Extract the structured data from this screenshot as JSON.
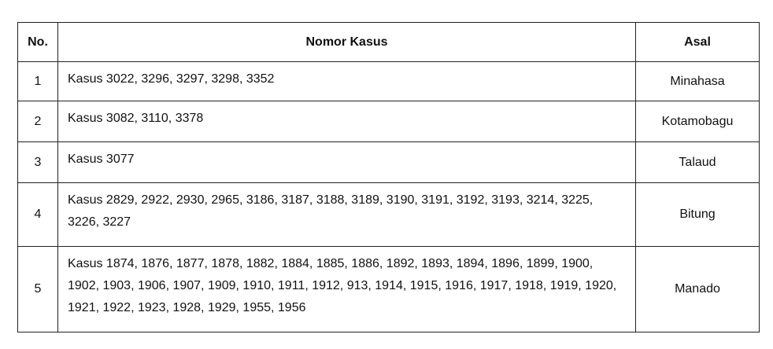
{
  "table": {
    "headers": [
      "No.",
      "Nomor Kasus",
      "Asal"
    ],
    "rows": [
      [
        "1",
        "Kasus 3022, 3296, 3297, 3298, 3352",
        "Minahasa"
      ],
      [
        "2",
        "Kasus 3082, 3110, 3378",
        "Kotamobagu"
      ],
      [
        "3",
        "Kasus 3077",
        "Talaud"
      ],
      [
        "4",
        "Kasus 2829, 2922, 2930, 2965, 3186, 3187, 3188, 3189, 3190, 3191, 3192, 3193, 3214, 3225, 3226, 3227",
        "Bitung"
      ],
      [
        "5",
        "Kasus 1874, 1876, 1877, 1878, 1882, 1884, 1885, 1886, 1892, 1893, 1894, 1896, 1899, 1900, 1902, 1903, 1906, 1907, 1909, 1910, 1911, 1912, 913, 1914, 1915, 1916, 1917, 1918, 1919, 1920, 1921, 1922, 1923, 1928, 1929, 1955, 1956",
        "Manado"
      ]
    ]
  }
}
